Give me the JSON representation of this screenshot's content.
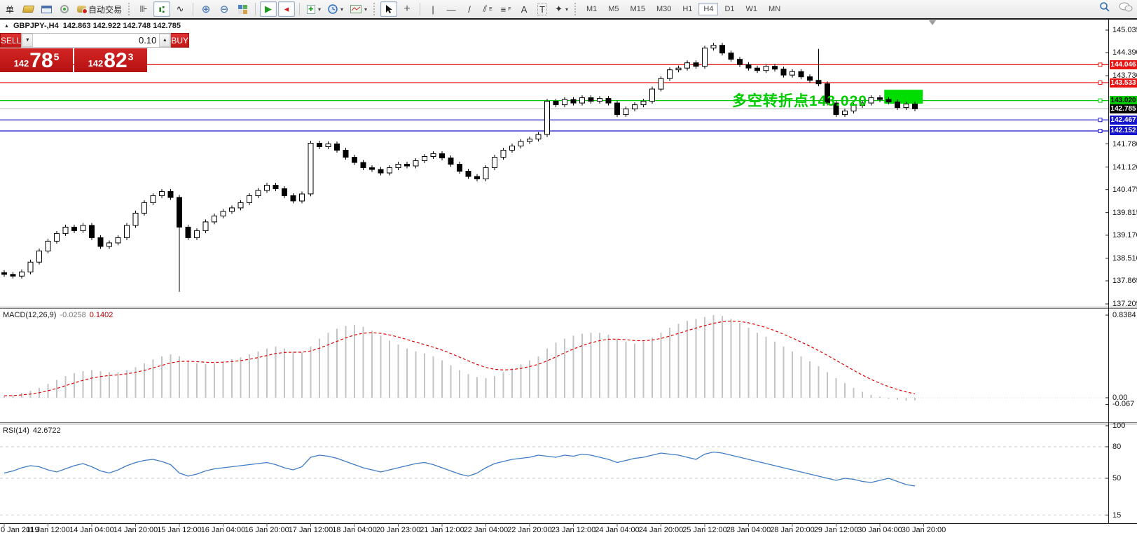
{
  "toolbar": {
    "partial_item": "单",
    "autotrade_label": "自动交易",
    "timeframes": [
      "M1",
      "M5",
      "M15",
      "M30",
      "H1",
      "H4",
      "D1",
      "W1",
      "MN"
    ],
    "active_timeframe": "H4"
  },
  "icons": {
    "header_marker": "▲",
    "vol_up": "▲",
    "vol_down": "▼",
    "dropdown": "▾",
    "zoom_in": "⊕",
    "zoom_out": "⊖",
    "cursor": "➤",
    "crosshair": "+",
    "vline": "|",
    "hline": "—",
    "trendline": "/",
    "channel": "⫽",
    "channel_sub": "E",
    "fibo": "≡",
    "fibo_sub": "F",
    "text_tool": "A",
    "label_tool": "T",
    "shapes": "✦",
    "search": "⌕",
    "chat": "💬",
    "bars_chart": "⊪",
    "candle_chart": "⑆",
    "line_chart": "∿",
    "autoscroll": "▶",
    "chart_shift": "◂"
  },
  "header": {
    "symbol_period": "GBPJPY-,H4",
    "ohlc": "142.863 142.922 142.748 142.785"
  },
  "order_panel": {
    "sell_label": "SELL",
    "buy_label": "BUY",
    "volume": "0.10",
    "sell_small": "142",
    "sell_big": "78",
    "sell_sup": "5",
    "buy_small": "142",
    "buy_big": "82",
    "buy_sup": "3"
  },
  "annotation": {
    "text": "多空转折点143.020",
    "color": "#00cc00",
    "highlight": {
      "from_candle": 100.5,
      "to_candle": 104.9,
      "price_top": 143.33,
      "price_bottom": 142.93,
      "color": "#00dd00"
    }
  },
  "chart_data": {
    "type": "candlestick-with-indicators",
    "symbol": "GBPJPY-",
    "period": "H4",
    "price_pane": {
      "axis_ticks": [
        145.035,
        144.39,
        143.73,
        141.78,
        141.12,
        140.475,
        139.815,
        139.17,
        138.51,
        137.865,
        137.205
      ],
      "levels": [
        {
          "value": 144.046,
          "color": "#e81313",
          "text_color": "#ffffff"
        },
        {
          "value": 143.533,
          "color": "#e81313",
          "text_color": "#ffffff"
        },
        {
          "value": 143.02,
          "color": "#00cd00",
          "text_color": "#000000"
        },
        {
          "value": 142.467,
          "color": "#1414cc",
          "text_color": "#ffffff"
        },
        {
          "value": 142.152,
          "color": "#1414cc",
          "text_color": "#ffffff"
        }
      ],
      "current_price": {
        "value": 142.785,
        "line_color": "#b0b0b0",
        "badge_color": "#000000",
        "text_color": "#ffffff"
      },
      "candles": {
        "first_open": 138.1,
        "default_wick": 0.07,
        "closes": [
          138.05,
          138.0,
          138.12,
          138.4,
          138.72,
          139.0,
          139.22,
          139.4,
          139.3,
          139.45,
          139.1,
          138.85,
          138.95,
          139.1,
          139.45,
          139.8,
          140.1,
          140.3,
          140.42,
          140.25,
          139.4,
          139.1,
          139.3,
          139.55,
          139.72,
          139.85,
          139.95,
          140.1,
          140.3,
          140.45,
          140.6,
          140.5,
          140.3,
          140.15,
          140.35,
          141.8,
          141.7,
          141.78,
          141.6,
          141.4,
          141.25,
          141.1,
          141.05,
          140.95,
          141.1,
          141.2,
          141.15,
          141.3,
          141.42,
          141.5,
          141.38,
          141.2,
          141.0,
          140.85,
          140.78,
          141.1,
          141.4,
          141.6,
          141.72,
          141.85,
          141.92,
          142.05,
          143.0,
          142.9,
          143.05,
          142.95,
          143.1,
          143.0,
          143.08,
          142.95,
          142.62,
          142.78,
          142.9,
          143.0,
          143.35,
          143.65,
          143.9,
          143.95,
          144.1,
          144.0,
          144.52,
          144.6,
          144.38,
          144.2,
          144.05,
          143.95,
          143.88,
          144.0,
          143.92,
          143.75,
          143.85,
          143.7,
          143.6,
          143.5,
          142.95,
          142.62,
          142.72,
          142.88,
          142.95,
          143.1,
          143.05,
          142.98,
          142.82,
          142.92,
          142.785
        ],
        "special_low": {
          "index": 20,
          "low": 137.55
        },
        "special_high": {
          "index": 93,
          "high": 144.5
        }
      }
    },
    "macd_pane": {
      "label": "MACD(12,26,9)",
      "value_main": "-0.0258",
      "value_signal": "0.1402",
      "axis_ticks": [
        {
          "v": 0.8384,
          "t": "0.8384"
        },
        {
          "v": 0,
          "t": "0.00"
        },
        {
          "v": -0.067,
          "t": "-0.067"
        }
      ],
      "histogram_color": "#c4c4c4",
      "signal_color": "#e00000",
      "values": [
        0.02,
        0.03,
        0.05,
        0.07,
        0.1,
        0.14,
        0.18,
        0.22,
        0.25,
        0.27,
        0.28,
        0.27,
        0.26,
        0.26,
        0.28,
        0.31,
        0.35,
        0.39,
        0.42,
        0.44,
        0.42,
        0.38,
        0.35,
        0.34,
        0.35,
        0.37,
        0.39,
        0.41,
        0.44,
        0.47,
        0.5,
        0.52,
        0.5,
        0.47,
        0.46,
        0.52,
        0.6,
        0.66,
        0.7,
        0.73,
        0.74,
        0.72,
        0.68,
        0.63,
        0.58,
        0.54,
        0.5,
        0.47,
        0.45,
        0.42,
        0.38,
        0.33,
        0.28,
        0.24,
        0.21,
        0.2,
        0.22,
        0.26,
        0.3,
        0.34,
        0.38,
        0.42,
        0.5,
        0.56,
        0.6,
        0.63,
        0.65,
        0.66,
        0.66,
        0.64,
        0.6,
        0.57,
        0.55,
        0.57,
        0.61,
        0.66,
        0.71,
        0.75,
        0.78,
        0.8,
        0.82,
        0.8384,
        0.83,
        0.8,
        0.76,
        0.71,
        0.66,
        0.62,
        0.57,
        0.52,
        0.47,
        0.42,
        0.37,
        0.32,
        0.26,
        0.2,
        0.15,
        0.1,
        0.06,
        0.03,
        0.01,
        -0.01,
        -0.02,
        -0.03,
        -0.0258
      ]
    },
    "rsi_pane": {
      "label": "RSI(14)",
      "value": "42.6722",
      "axis_ticks": [
        100,
        80,
        50,
        15
      ],
      "dashed_levels": [
        80,
        50,
        15
      ],
      "line_color": "#3f7cc4",
      "values": [
        55,
        57,
        60,
        62,
        61,
        58,
        56,
        59,
        62,
        64,
        61,
        57,
        55,
        58,
        62,
        65,
        67,
        68,
        66,
        63,
        55,
        52,
        54,
        57,
        59,
        60,
        61,
        62,
        63,
        64,
        65,
        63,
        60,
        58,
        61,
        70,
        72,
        71,
        69,
        66,
        63,
        60,
        58,
        56,
        58,
        60,
        62,
        64,
        65,
        63,
        60,
        57,
        54,
        52,
        55,
        60,
        64,
        66,
        68,
        69,
        70,
        72,
        71,
        70,
        72,
        71,
        73,
        72,
        70,
        68,
        65,
        67,
        69,
        70,
        72,
        74,
        73,
        72,
        70,
        68,
        73,
        75,
        74,
        72,
        70,
        68,
        66,
        64,
        62,
        60,
        58,
        56,
        54,
        52,
        50,
        48,
        50,
        49,
        47,
        46,
        48,
        50,
        47,
        44,
        42.67
      ]
    },
    "time_labels": [
      "0 Jan 2019",
      "11 Jan 12:00",
      "14 Jan 04:00",
      "14 Jan 20:00",
      "15 Jan 12:00",
      "16 Jan 04:00",
      "16 Jan 20:00",
      "17 Jan 12:00",
      "18 Jan 04:00",
      "20 Jan 23:00",
      "21 Jan 12:00",
      "22 Jan 04:00",
      "22 Jan 20:00",
      "23 Jan 12:00",
      "24 Jan 04:00",
      "24 Jan 20:00",
      "25 Jan 12:00",
      "28 Jan 04:00",
      "28 Jan 20:00",
      "29 Jan 12:00",
      "30 Jan 04:00",
      "30 Jan 20:00"
    ]
  }
}
